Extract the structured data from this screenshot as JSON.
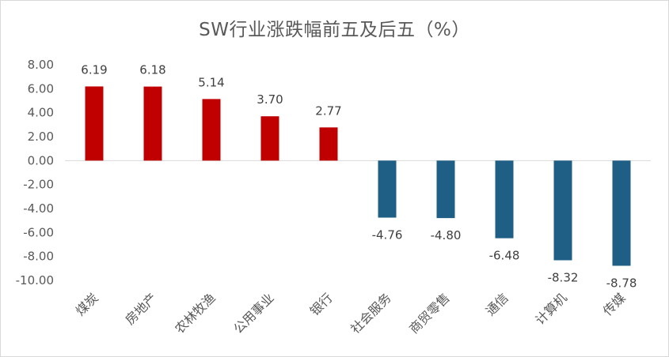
{
  "chart_data": {
    "type": "bar",
    "title": "SW行业涨跌幅前五及后五（%）",
    "xlabel": "",
    "ylabel": "",
    "ylim": [
      -10,
      8
    ],
    "yticks": [
      "8.00",
      "6.00",
      "4.00",
      "2.00",
      "0.00",
      "-2.00",
      "-4.00",
      "-6.00",
      "-8.00",
      "-10.00"
    ],
    "ytick_values": [
      8,
      6,
      4,
      2,
      0,
      -2,
      -4,
      -6,
      -8,
      -10
    ],
    "grid": false,
    "legend": "none",
    "categories": [
      "煤炭",
      "房地产",
      "农林牧渔",
      "公用事业",
      "银行",
      "社会服务",
      "商贸零售",
      "通信",
      "计算机",
      "传媒"
    ],
    "values": [
      6.19,
      6.18,
      5.14,
      3.7,
      2.77,
      -4.76,
      -4.8,
      -6.48,
      -8.32,
      -8.78
    ],
    "data_labels": [
      "6.19",
      "6.18",
      "5.14",
      "3.70",
      "2.77",
      "-4.76",
      "-4.80",
      "-6.48",
      "-8.32",
      "-8.78"
    ],
    "colors": {
      "positive": "#C00000",
      "negative": "#1F5F86",
      "axis": "#d9d9d9",
      "text": "#595959"
    }
  }
}
